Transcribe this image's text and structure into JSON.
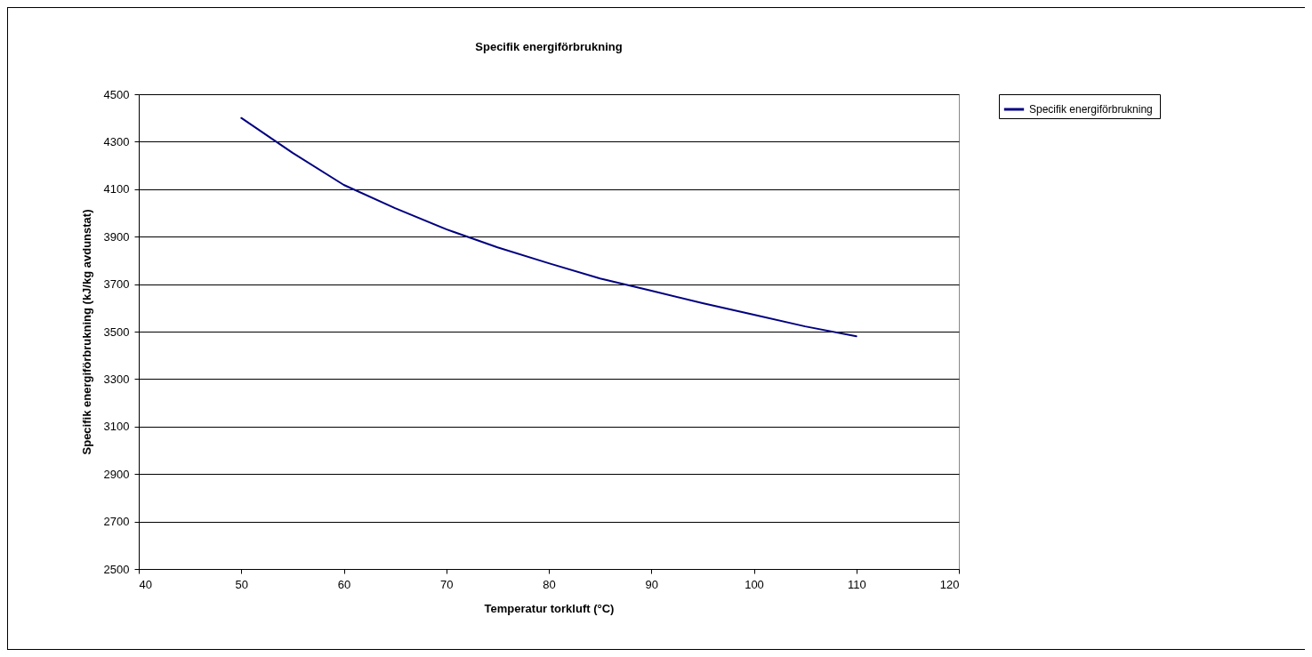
{
  "chart_data": {
    "type": "line",
    "title": "Specifik  energiförbrukning",
    "xlabel": "Temperatur torkluft (°C)",
    "ylabel": "Specifik energiförbrukning (kJ/kg avdunstat)",
    "series": [
      {
        "name": "Specifik  energiförbrukning",
        "color": "#000080",
        "x": [
          50,
          55,
          60,
          65,
          70,
          75,
          80,
          85,
          90,
          95,
          100,
          105,
          110
        ],
        "values": [
          4400,
          4253,
          4118,
          4020,
          3931,
          3855,
          3788,
          3724,
          3672,
          3620,
          3571,
          3522,
          3480
        ]
      }
    ],
    "xlim": [
      40,
      120
    ],
    "xticks": [
      40,
      50,
      60,
      70,
      80,
      90,
      100,
      110,
      120
    ],
    "ylim": [
      2500,
      4500
    ],
    "yticks": [
      2500,
      2700,
      2900,
      3100,
      3300,
      3500,
      3700,
      3900,
      4100,
      4300,
      4500
    ],
    "grid": "y",
    "legend": "right"
  }
}
